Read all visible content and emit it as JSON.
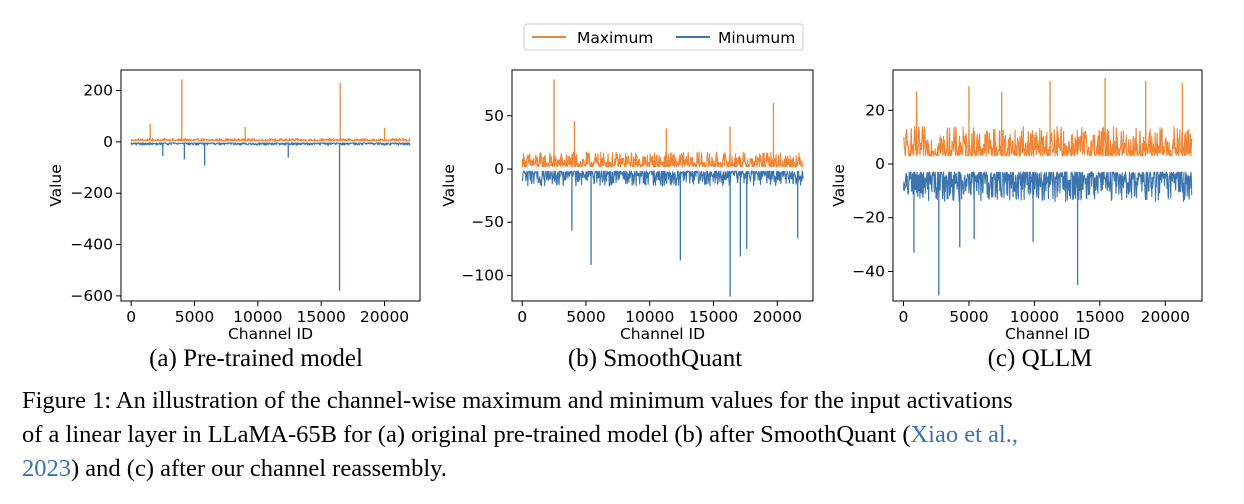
{
  "legend": {
    "items": [
      {
        "label": "Maximum",
        "color": "#ef8636"
      },
      {
        "label": "Minumum",
        "color": "#3b75af"
      }
    ]
  },
  "chart_data": [
    {
      "type": "line",
      "subcaption": "(a) Pre-trained model",
      "xlabel": "Channel ID",
      "ylabel": "Value",
      "xlim": [
        -800,
        22800
      ],
      "ylim": [
        -620,
        280
      ],
      "xticks": [
        0,
        5000,
        10000,
        15000,
        20000
      ],
      "xtick_labels": [
        "0",
        "5000",
        "10000",
        "15000",
        "20000"
      ],
      "yticks": [
        200,
        0,
        -200,
        -400,
        -600
      ],
      "ytick_labels": [
        "200",
        "0",
        "−200",
        "−400",
        "−600"
      ],
      "n_channels": 22016,
      "series": [
        {
          "name": "Maximum",
          "color": "#ef8636",
          "baseline": 4,
          "noise": 9,
          "spikes": [
            [
              4000,
              243
            ],
            [
              16500,
              230
            ],
            [
              1500,
              72
            ],
            [
              9000,
              58
            ],
            [
              20000,
              55
            ]
          ]
        },
        {
          "name": "Minumum",
          "color": "#3b75af",
          "baseline": -4,
          "noise": -9,
          "spikes": [
            [
              16450,
              -580
            ],
            [
              5800,
              -93
            ],
            [
              4200,
              -68
            ],
            [
              12400,
              -62
            ],
            [
              2500,
              -55
            ]
          ]
        }
      ]
    },
    {
      "type": "line",
      "subcaption": "(b) SmoothQuant",
      "xlabel": "Channel ID",
      "ylabel": "Value",
      "xlim": [
        -800,
        22800
      ],
      "ylim": [
        -124,
        93
      ],
      "xticks": [
        0,
        5000,
        10000,
        15000,
        20000
      ],
      "xtick_labels": [
        "0",
        "5000",
        "10000",
        "15000",
        "20000"
      ],
      "yticks": [
        50,
        0,
        -50,
        -100
      ],
      "ytick_labels": [
        "50",
        "0",
        "−50",
        "−100"
      ],
      "n_channels": 22016,
      "series": [
        {
          "name": "Maximum",
          "color": "#ef8636",
          "baseline": 2,
          "noise": 14,
          "spikes": [
            [
              2500,
              84
            ],
            [
              19700,
              62
            ],
            [
              4100,
              45
            ],
            [
              16300,
              40
            ],
            [
              11300,
              38
            ]
          ]
        },
        {
          "name": "Minumum",
          "color": "#3b75af",
          "baseline": -2,
          "noise": -14,
          "spikes": [
            [
              16300,
              -120
            ],
            [
              5400,
              -90
            ],
            [
              12400,
              -86
            ],
            [
              17100,
              -82
            ],
            [
              17600,
              -75
            ],
            [
              21600,
              -65
            ],
            [
              3900,
              -58
            ]
          ]
        }
      ]
    },
    {
      "type": "line",
      "subcaption": "(c) QLLM",
      "xlabel": "Channel ID",
      "ylabel": "Value",
      "xlim": [
        -800,
        22800
      ],
      "ylim": [
        -51,
        35
      ],
      "xticks": [
        0,
        5000,
        10000,
        15000,
        20000
      ],
      "xtick_labels": [
        "0",
        "5000",
        "10000",
        "15000",
        "20000"
      ],
      "yticks": [
        20,
        0,
        -20,
        -40
      ],
      "ytick_labels": [
        "20",
        "0",
        "−20",
        "−40"
      ],
      "n_channels": 22016,
      "series": [
        {
          "name": "Maximum",
          "color": "#ef8636",
          "baseline": 3,
          "noise": 11,
          "spikes": [
            [
              1000,
              27
            ],
            [
              5000,
              29
            ],
            [
              11200,
              31
            ],
            [
              15400,
              32
            ],
            [
              18500,
              31
            ],
            [
              21300,
              30
            ],
            [
              7500,
              27
            ]
          ]
        },
        {
          "name": "Minumum",
          "color": "#3b75af",
          "baseline": -3,
          "noise": -11,
          "spikes": [
            [
              2700,
              -49
            ],
            [
              13300,
              -45
            ],
            [
              800,
              -33
            ],
            [
              4300,
              -31
            ],
            [
              9900,
              -29
            ],
            [
              5400,
              -28
            ]
          ]
        }
      ]
    }
  ],
  "caption": {
    "line1": "Figure 1: An illustration of the channel-wise maximum and minimum values for the input activations",
    "line2": "of a linear layer in LLaMA-65B for (a) original pre-trained model (b) after SmoothQuant (",
    "cite_name": "Xiao et al.,",
    "cite_year": "2023",
    "line3": ") and (c) after our channel reassembly."
  }
}
